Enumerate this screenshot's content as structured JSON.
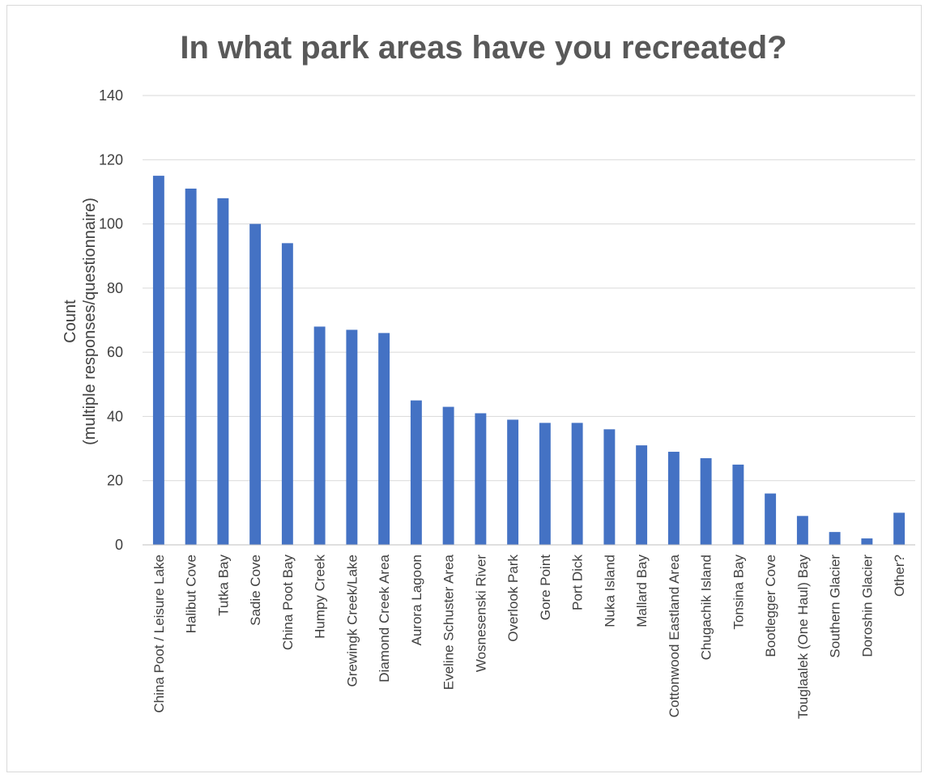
{
  "chart_data": {
    "type": "bar",
    "title": "In what park areas have you recreated?",
    "xlabel": "",
    "ylabel": [
      "Count",
      "(multiple responses/questionnaire)"
    ],
    "ylim": [
      0,
      140
    ],
    "yticks": [
      0,
      20,
      40,
      60,
      80,
      100,
      120,
      140
    ],
    "grid": true,
    "legend": "none",
    "bar_color": "#4472C4",
    "categories": [
      "China Poot / Leisure Lake",
      "Halibut Cove",
      "Tutka Bay",
      "Sadie Cove",
      "China Poot Bay",
      "Humpy Creek",
      "Grewingk Creek/Lake",
      "Diamond Creek Area",
      "Aurora Lagoon",
      "Eveline Schuster Area",
      "Wosnesenski River",
      "Overlook Park",
      "Gore Point",
      "Port Dick",
      "Nuka Island",
      "Mallard Bay",
      "Cottonwood Eastland Area",
      "Chugachik Island",
      "Tonsina Bay",
      "Bootlegger Cove",
      "Touglaalek (One Haul) Bay",
      "Southern Glacier",
      "Doroshin Glacier",
      "Other?"
    ],
    "values": [
      115,
      111,
      108,
      100,
      94,
      68,
      67,
      66,
      45,
      43,
      41,
      39,
      38,
      38,
      36,
      31,
      29,
      27,
      25,
      16,
      9,
      4,
      2,
      10
    ]
  }
}
